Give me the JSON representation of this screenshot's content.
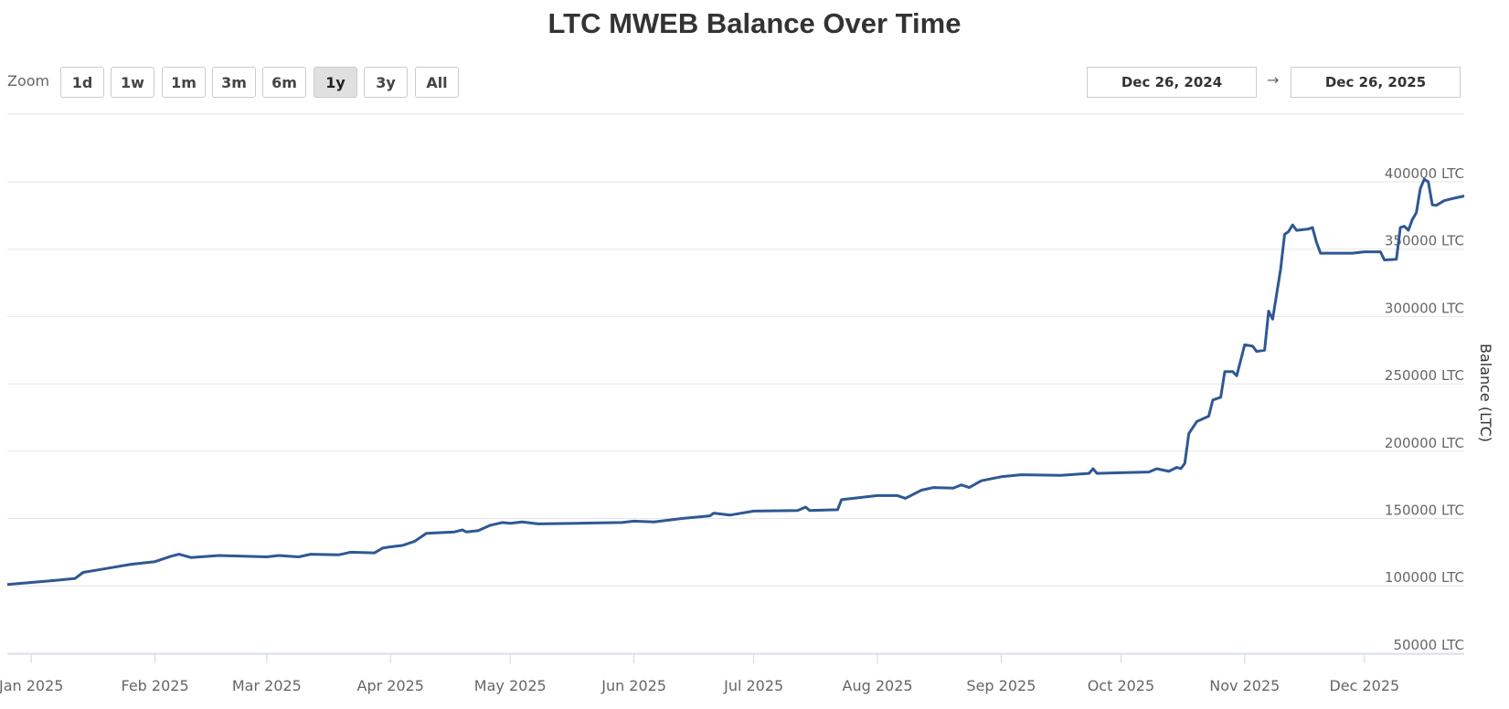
{
  "chart_data": {
    "type": "line",
    "title": "LTC MWEB Balance Over Time",
    "xlabel": "",
    "ylabel": "Balance (LTC)",
    "xlim": [
      "2024-12-26",
      "2025-12-26"
    ],
    "ylim": [
      42000,
      400000
    ],
    "grid": true,
    "legend": "none",
    "y_ticks": [
      50000,
      100000,
      150000,
      200000,
      250000,
      300000,
      350000,
      400000
    ],
    "y_tick_suffix": " LTC",
    "y_tick_labels": [
      "50000 LTC",
      "100000 LTC",
      "150000 LTC",
      "200000 LTC",
      "250000 LTC",
      "300000 LTC",
      "350000 LTC",
      "400000 LTC"
    ],
    "x_ticks": [
      "2025-01-01",
      "2025-02-01",
      "2025-03-01",
      "2025-04-01",
      "2025-05-01",
      "2025-06-01",
      "2025-07-01",
      "2025-08-01",
      "2025-09-01",
      "2025-10-01",
      "2025-11-01",
      "2025-12-01"
    ],
    "x_tick_labels": [
      "Jan 2025",
      "Feb 2025",
      "Mar 2025",
      "Apr 2025",
      "May 2025",
      "Jun 2025",
      "Jul 2025",
      "Aug 2025",
      "Sep 2025",
      "Oct 2025",
      "Nov 2025",
      "Dec 2025"
    ],
    "series": [
      {
        "name": "MWEB Balance",
        "color": "#2f5893",
        "points": [
          [
            "2024-12-26",
            101000
          ],
          [
            "2025-01-01",
            102500
          ],
          [
            "2025-01-07",
            104000
          ],
          [
            "2025-01-12",
            105500
          ],
          [
            "2025-01-14",
            110000
          ],
          [
            "2025-01-19",
            112500
          ],
          [
            "2025-01-26",
            116000
          ],
          [
            "2025-02-01",
            118000
          ],
          [
            "2025-02-05",
            122000
          ],
          [
            "2025-02-07",
            123500
          ],
          [
            "2025-02-10",
            121000
          ],
          [
            "2025-02-17",
            122500
          ],
          [
            "2025-03-01",
            121500
          ],
          [
            "2025-03-04",
            122500
          ],
          [
            "2025-03-09",
            121500
          ],
          [
            "2025-03-12",
            123500
          ],
          [
            "2025-03-19",
            123000
          ],
          [
            "2025-03-22",
            125000
          ],
          [
            "2025-03-28",
            124500
          ],
          [
            "2025-03-30",
            128000
          ],
          [
            "2025-04-01",
            129000
          ],
          [
            "2025-04-04",
            130000
          ],
          [
            "2025-04-07",
            133000
          ],
          [
            "2025-04-10",
            139000
          ],
          [
            "2025-04-17",
            140000
          ],
          [
            "2025-04-19",
            141500
          ],
          [
            "2025-04-20",
            140000
          ],
          [
            "2025-04-23",
            141000
          ],
          [
            "2025-04-26",
            145000
          ],
          [
            "2025-04-29",
            147000
          ],
          [
            "2025-05-01",
            146500
          ],
          [
            "2025-05-04",
            147500
          ],
          [
            "2025-05-08",
            146000
          ],
          [
            "2025-05-18",
            146500
          ],
          [
            "2025-05-29",
            147000
          ],
          [
            "2025-06-01",
            148000
          ],
          [
            "2025-06-06",
            147500
          ],
          [
            "2025-06-13",
            150000
          ],
          [
            "2025-06-20",
            152000
          ],
          [
            "2025-06-21",
            154000
          ],
          [
            "2025-06-25",
            152500
          ],
          [
            "2025-07-01",
            155500
          ],
          [
            "2025-07-12",
            156000
          ],
          [
            "2025-07-14",
            158500
          ],
          [
            "2025-07-15",
            156000
          ],
          [
            "2025-07-22",
            156500
          ],
          [
            "2025-07-23",
            164000
          ],
          [
            "2025-08-01",
            167000
          ],
          [
            "2025-08-06",
            167000
          ],
          [
            "2025-08-08",
            165000
          ],
          [
            "2025-08-12",
            171000
          ],
          [
            "2025-08-15",
            173000
          ],
          [
            "2025-08-20",
            172500
          ],
          [
            "2025-08-22",
            175000
          ],
          [
            "2025-08-24",
            173000
          ],
          [
            "2025-08-27",
            178000
          ],
          [
            "2025-09-01",
            181000
          ],
          [
            "2025-09-06",
            182500
          ],
          [
            "2025-09-16",
            182000
          ],
          [
            "2025-09-23",
            183500
          ],
          [
            "2025-09-24",
            187000
          ],
          [
            "2025-09-25",
            183500
          ],
          [
            "2025-10-01",
            184000
          ],
          [
            "2025-10-08",
            184500
          ],
          [
            "2025-10-10",
            187000
          ],
          [
            "2025-10-13",
            185000
          ],
          [
            "2025-10-15",
            188000
          ],
          [
            "2025-10-16",
            187000
          ],
          [
            "2025-10-17",
            191000
          ],
          [
            "2025-10-18",
            213000
          ],
          [
            "2025-10-20",
            222000
          ],
          [
            "2025-10-23",
            226000
          ],
          [
            "2025-10-24",
            238000
          ],
          [
            "2025-10-26",
            240000
          ],
          [
            "2025-10-27",
            259000
          ],
          [
            "2025-10-29",
            259000
          ],
          [
            "2025-10-30",
            256000
          ],
          [
            "2025-11-01",
            279000
          ],
          [
            "2025-11-03",
            278000
          ],
          [
            "2025-11-04",
            274000
          ],
          [
            "2025-11-06",
            275000
          ],
          [
            "2025-11-07",
            304000
          ],
          [
            "2025-11-08",
            298000
          ],
          [
            "2025-11-10",
            335000
          ],
          [
            "2025-11-11",
            361000
          ],
          [
            "2025-11-12",
            363000
          ],
          [
            "2025-11-13",
            368000
          ],
          [
            "2025-11-14",
            364000
          ],
          [
            "2025-11-17",
            365000
          ],
          [
            "2025-11-18",
            366000
          ],
          [
            "2025-11-19",
            355000
          ],
          [
            "2025-11-20",
            347000
          ],
          [
            "2025-11-28",
            347000
          ],
          [
            "2025-12-01",
            348000
          ],
          [
            "2025-12-05",
            348000
          ],
          [
            "2025-12-06",
            342000
          ],
          [
            "2025-12-09",
            342500
          ],
          [
            "2025-12-10",
            366000
          ],
          [
            "2025-12-11",
            367000
          ],
          [
            "2025-12-12",
            364000
          ],
          [
            "2025-12-13",
            372000
          ],
          [
            "2025-12-14",
            377000
          ],
          [
            "2025-12-15",
            395000
          ],
          [
            "2025-12-16",
            402000
          ],
          [
            "2025-12-17",
            400000
          ],
          [
            "2025-12-18",
            383000
          ],
          [
            "2025-12-19",
            382500
          ],
          [
            "2025-12-21",
            386000
          ],
          [
            "2025-12-23",
            387500
          ],
          [
            "2025-12-26",
            389500
          ]
        ]
      }
    ]
  },
  "controls": {
    "zoom_label": "Zoom",
    "zoom_buttons": [
      "1d",
      "1w",
      "1m",
      "3m",
      "6m",
      "1y",
      "3y",
      "All"
    ],
    "active_zoom": "1y",
    "date_from": "Dec 26, 2024",
    "date_arrow": "→",
    "date_to": "Dec 26, 2025"
  }
}
